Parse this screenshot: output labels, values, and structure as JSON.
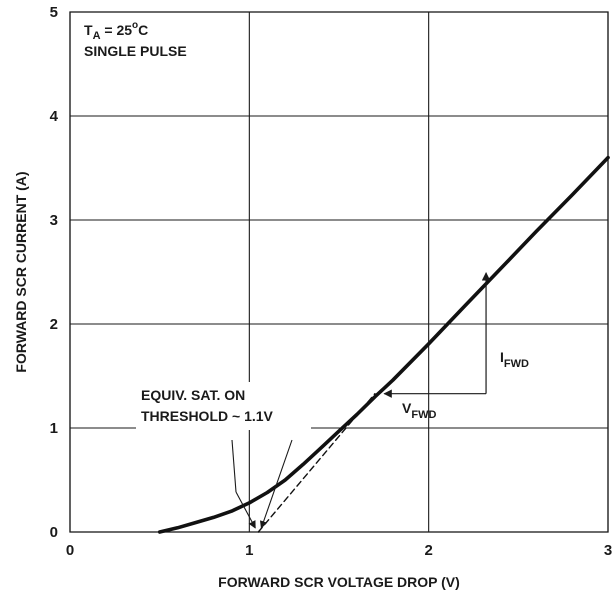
{
  "chart_data": {
    "type": "line",
    "xlabel": "FORWARD SCR VOLTAGE DROP (V)",
    "ylabel": "FORWARD SCR CURRENT (A)",
    "xlim": [
      0,
      3
    ],
    "ylim": [
      0,
      5
    ],
    "x_ticks": [
      "0",
      "1",
      "2",
      "3"
    ],
    "y_ticks": [
      "0",
      "1",
      "2",
      "3",
      "4",
      "5"
    ],
    "grid": true,
    "series": [
      {
        "style": "solid",
        "x": [
          0.5,
          0.6,
          0.7,
          0.8,
          0.9,
          1.0,
          1.1,
          1.2,
          1.3,
          1.4,
          1.5,
          1.6,
          1.7,
          1.8,
          2.0,
          2.2,
          2.4,
          2.6,
          2.8,
          3.0
        ],
        "y": [
          0.0,
          0.04,
          0.09,
          0.14,
          0.2,
          0.28,
          0.38,
          0.5,
          0.65,
          0.81,
          0.97,
          1.13,
          1.3,
          1.46,
          1.81,
          2.17,
          2.53,
          2.89,
          3.24,
          3.6
        ]
      },
      {
        "style": "dashed",
        "x": [
          1.05,
          1.7
        ],
        "y": [
          0.0,
          1.33
        ]
      }
    ],
    "annotations": {
      "condition_line1_main": "T",
      "condition_line1_sub": "A",
      "condition_line1_rest": " = 25",
      "condition_line1_sup": "o",
      "condition_line1_end": "C",
      "condition_line2": "SINGLE PULSE",
      "threshold_line1": "EQUIV. SAT. ON",
      "threshold_line2": "THRESHOLD ~ 1.1V",
      "ifwd_main": "I",
      "ifwd_sub": "FWD",
      "vfwd_main": "V",
      "vfwd_sub": "FWD"
    },
    "markers": {
      "threshold_x": 1.05,
      "vfwd_from_x": 2.32,
      "vfwd_to_x": 1.73,
      "vfwd_y": 1.33,
      "ifwd_x": 2.32,
      "ifwd_from_y": 1.33,
      "ifwd_to_y": 2.53
    }
  }
}
